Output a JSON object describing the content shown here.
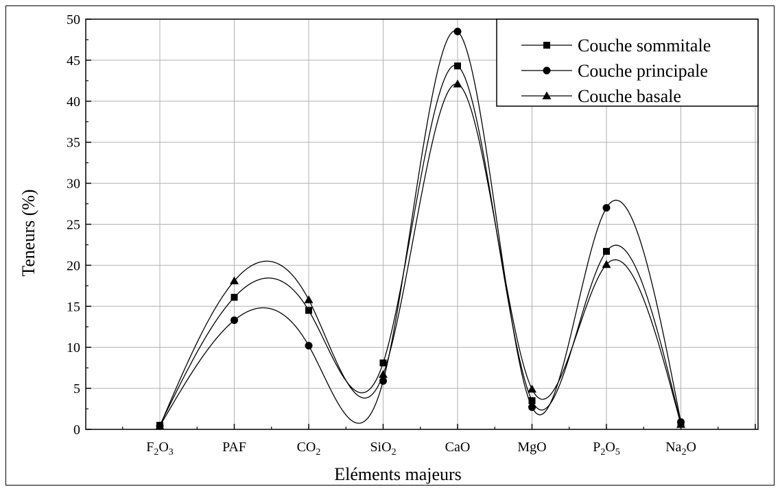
{
  "chart_data": {
    "type": "line",
    "xlabel": "Eléments majeurs",
    "ylabel": "Teneurs (%)",
    "ylim": [
      0,
      50
    ],
    "yticks": [
      0,
      5,
      10,
      15,
      20,
      25,
      30,
      35,
      40,
      45,
      50
    ],
    "categories": [
      {
        "base": "F",
        "sub": "2",
        "base2": "O",
        "sub2": "3"
      },
      {
        "base": "PAF",
        "sub": "",
        "base2": "",
        "sub2": ""
      },
      {
        "base": "CO",
        "sub": "2",
        "base2": "",
        "sub2": ""
      },
      {
        "base": "SiO",
        "sub": "2",
        "base2": "",
        "sub2": ""
      },
      {
        "base": "CaO",
        "sub": "",
        "base2": "",
        "sub2": ""
      },
      {
        "base": "MgO",
        "sub": "",
        "base2": "",
        "sub2": ""
      },
      {
        "base": "P",
        "sub": "2",
        "base2": "O",
        "sub2": "5"
      },
      {
        "base": "Na",
        "sub": "2",
        "base2": "O",
        "sub2": ""
      }
    ],
    "grid": true,
    "legend_position": "top-right",
    "series": [
      {
        "name": "Couche sommitale",
        "marker": "square",
        "values": [
          0.5,
          16.1,
          14.5,
          8.1,
          44.3,
          3.5,
          21.7,
          0.7
        ]
      },
      {
        "name": "Couche principale",
        "marker": "circle",
        "values": [
          0.4,
          13.3,
          10.2,
          5.9,
          48.5,
          2.7,
          27.0,
          0.9
        ]
      },
      {
        "name": "Couche basale",
        "marker": "triangle",
        "values": [
          0.4,
          18.1,
          15.8,
          6.7,
          42.1,
          4.9,
          20.1,
          0.6
        ]
      }
    ]
  }
}
